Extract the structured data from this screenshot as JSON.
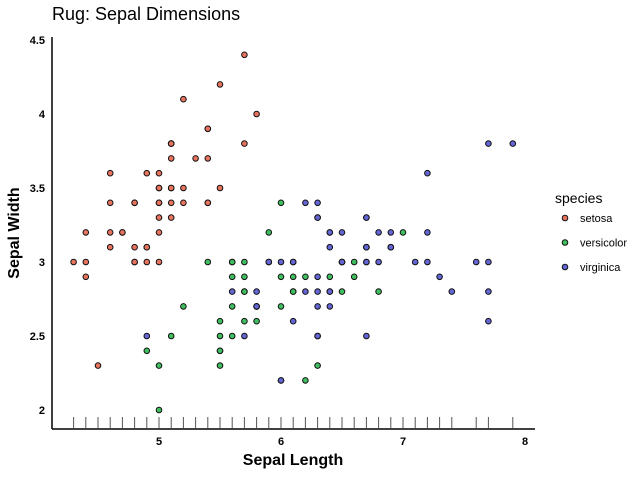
{
  "chart_data": {
    "type": "scatter",
    "title": "Rug: Sepal Dimensions",
    "xlabel": "Sepal Length",
    "ylabel": "Sepal Width",
    "xlim": [
      4.2,
      8.1
    ],
    "ylim": [
      1.9,
      4.5
    ],
    "xticks": [
      5,
      6,
      7,
      8
    ],
    "xtick_labels": [
      "5",
      "6",
      "7",
      "8"
    ],
    "yticks": [
      2,
      2.5,
      3,
      3.5,
      4,
      4.5
    ],
    "ytick_labels": [
      "2",
      "2.5",
      "3",
      "3.5",
      "4",
      "4.5"
    ],
    "grid": false,
    "rug": "x",
    "legend": {
      "title": "species",
      "position": "right"
    },
    "colors": {
      "setosa": "#e8735f",
      "versicolor": "#3fbf5f",
      "virginica": "#6466d6"
    },
    "series": [
      {
        "name": "setosa",
        "points": [
          [
            5.1,
            3.5
          ],
          [
            4.9,
            3.0
          ],
          [
            4.7,
            3.2
          ],
          [
            4.6,
            3.1
          ],
          [
            5.0,
            3.6
          ],
          [
            5.4,
            3.9
          ],
          [
            4.6,
            3.4
          ],
          [
            5.0,
            3.4
          ],
          [
            4.4,
            2.9
          ],
          [
            4.9,
            3.1
          ],
          [
            5.4,
            3.7
          ],
          [
            4.8,
            3.4
          ],
          [
            4.8,
            3.0
          ],
          [
            4.3,
            3.0
          ],
          [
            5.8,
            4.0
          ],
          [
            5.7,
            4.4
          ],
          [
            5.4,
            3.9
          ],
          [
            5.1,
            3.5
          ],
          [
            5.7,
            3.8
          ],
          [
            5.1,
            3.8
          ],
          [
            5.4,
            3.4
          ],
          [
            5.1,
            3.7
          ],
          [
            4.6,
            3.6
          ],
          [
            5.1,
            3.3
          ],
          [
            4.8,
            3.4
          ],
          [
            5.0,
            3.0
          ],
          [
            5.0,
            3.4
          ],
          [
            5.2,
            3.5
          ],
          [
            5.2,
            3.4
          ],
          [
            4.7,
            3.2
          ],
          [
            4.8,
            3.1
          ],
          [
            5.4,
            3.4
          ],
          [
            5.2,
            4.1
          ],
          [
            5.5,
            4.2
          ],
          [
            4.9,
            3.1
          ],
          [
            5.0,
            3.2
          ],
          [
            5.5,
            3.5
          ],
          [
            4.9,
            3.6
          ],
          [
            4.4,
            3.0
          ],
          [
            5.1,
            3.4
          ],
          [
            5.0,
            3.5
          ],
          [
            4.5,
            2.3
          ],
          [
            4.4,
            3.2
          ],
          [
            5.0,
            3.5
          ],
          [
            5.1,
            3.8
          ],
          [
            4.8,
            3.0
          ],
          [
            5.1,
            3.8
          ],
          [
            4.6,
            3.2
          ],
          [
            5.3,
            3.7
          ],
          [
            5.0,
            3.3
          ]
        ]
      },
      {
        "name": "versicolor",
        "points": [
          [
            7.0,
            3.2
          ],
          [
            6.4,
            3.2
          ],
          [
            6.9,
            3.1
          ],
          [
            5.5,
            2.3
          ],
          [
            6.5,
            2.8
          ],
          [
            5.7,
            2.8
          ],
          [
            6.3,
            3.3
          ],
          [
            4.9,
            2.4
          ],
          [
            6.6,
            2.9
          ],
          [
            5.2,
            2.7
          ],
          [
            5.0,
            2.0
          ],
          [
            5.9,
            3.0
          ],
          [
            6.0,
            2.2
          ],
          [
            6.1,
            2.9
          ],
          [
            5.6,
            2.9
          ],
          [
            6.7,
            3.1
          ],
          [
            5.6,
            3.0
          ],
          [
            5.8,
            2.7
          ],
          [
            6.2,
            2.2
          ],
          [
            5.6,
            2.5
          ],
          [
            5.9,
            3.2
          ],
          [
            6.1,
            2.8
          ],
          [
            6.3,
            2.5
          ],
          [
            6.1,
            2.8
          ],
          [
            6.4,
            2.9
          ],
          [
            6.6,
            3.0
          ],
          [
            6.8,
            2.8
          ],
          [
            6.7,
            3.0
          ],
          [
            6.0,
            2.9
          ],
          [
            5.7,
            2.6
          ],
          [
            5.5,
            2.4
          ],
          [
            5.5,
            2.4
          ],
          [
            5.8,
            2.7
          ],
          [
            6.0,
            2.7
          ],
          [
            5.4,
            3.0
          ],
          [
            6.0,
            3.4
          ],
          [
            6.7,
            3.1
          ],
          [
            6.3,
            2.3
          ],
          [
            5.6,
            3.0
          ],
          [
            5.5,
            2.5
          ],
          [
            5.5,
            2.6
          ],
          [
            6.1,
            3.0
          ],
          [
            5.8,
            2.6
          ],
          [
            5.0,
            2.3
          ],
          [
            5.6,
            2.7
          ],
          [
            5.7,
            3.0
          ],
          [
            5.7,
            2.9
          ],
          [
            6.2,
            2.9
          ],
          [
            5.1,
            2.5
          ],
          [
            5.7,
            2.8
          ]
        ]
      },
      {
        "name": "virginica",
        "points": [
          [
            6.3,
            3.3
          ],
          [
            5.8,
            2.7
          ],
          [
            7.1,
            3.0
          ],
          [
            6.3,
            2.9
          ],
          [
            6.5,
            3.0
          ],
          [
            7.6,
            3.0
          ],
          [
            4.9,
            2.5
          ],
          [
            7.3,
            2.9
          ],
          [
            6.7,
            2.5
          ],
          [
            7.2,
            3.6
          ],
          [
            6.5,
            3.2
          ],
          [
            6.4,
            2.7
          ],
          [
            6.8,
            3.0
          ],
          [
            5.7,
            2.5
          ],
          [
            5.8,
            2.8
          ],
          [
            6.4,
            3.2
          ],
          [
            6.5,
            3.0
          ],
          [
            7.7,
            3.8
          ],
          [
            7.7,
            2.6
          ],
          [
            6.0,
            2.2
          ],
          [
            6.9,
            3.2
          ],
          [
            5.6,
            2.8
          ],
          [
            7.7,
            2.8
          ],
          [
            6.3,
            2.7
          ],
          [
            6.7,
            3.3
          ],
          [
            7.2,
            3.2
          ],
          [
            6.2,
            2.8
          ],
          [
            6.1,
            3.0
          ],
          [
            6.4,
            2.8
          ],
          [
            7.2,
            3.0
          ],
          [
            7.4,
            2.8
          ],
          [
            7.9,
            3.8
          ],
          [
            6.4,
            2.8
          ],
          [
            6.3,
            2.8
          ],
          [
            6.1,
            2.6
          ],
          [
            7.7,
            3.0
          ],
          [
            6.3,
            3.4
          ],
          [
            6.4,
            3.1
          ],
          [
            6.0,
            3.0
          ],
          [
            6.9,
            3.1
          ],
          [
            6.7,
            3.1
          ],
          [
            6.9,
            3.1
          ],
          [
            5.8,
            2.7
          ],
          [
            6.8,
            3.2
          ],
          [
            6.7,
            3.3
          ],
          [
            6.7,
            3.0
          ],
          [
            6.3,
            2.5
          ],
          [
            6.5,
            3.0
          ],
          [
            6.2,
            3.4
          ],
          [
            5.9,
            3.0
          ]
        ]
      }
    ]
  }
}
